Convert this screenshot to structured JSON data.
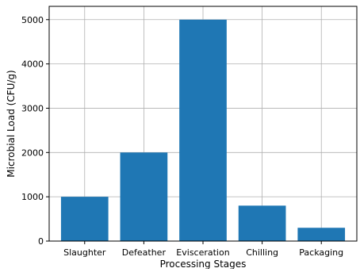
{
  "chart_data": {
    "type": "bar",
    "title": "",
    "xlabel": "Processing Stages",
    "ylabel": "Microbial Load (CFU/g)",
    "categories": [
      "Slaughter",
      "Defeather",
      "Evisceration",
      "Chilling",
      "Packaging"
    ],
    "values": [
      1000,
      2000,
      5000,
      800,
      300
    ],
    "ylim": [
      0,
      5300
    ],
    "yticks": [
      0,
      1000,
      2000,
      3000,
      4000,
      5000
    ],
    "ytick_labels": [
      "0",
      "1000",
      "2000",
      "3000",
      "4000",
      "5000"
    ],
    "grid": true,
    "legend": "none",
    "colors": {
      "bar": "#1f77b4",
      "grid": "#b0b0b0",
      "axis": "#000000"
    }
  }
}
